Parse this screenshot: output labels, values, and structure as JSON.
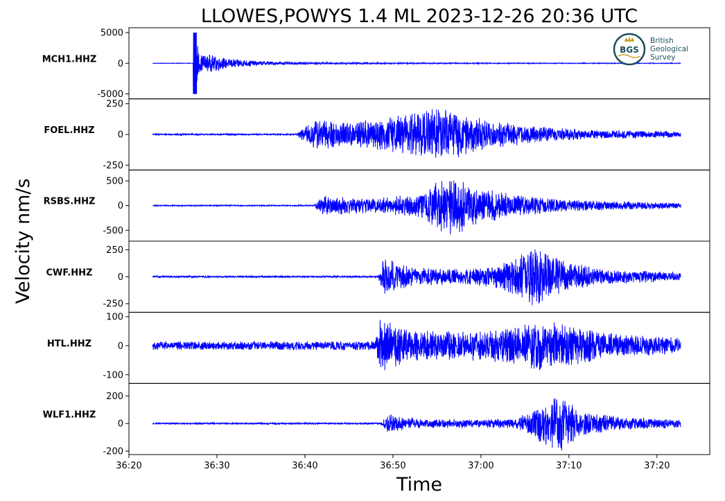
{
  "chart_data": {
    "type": "line",
    "title": "LLOWES,POWYS 1.4 ML   2023-12-26 20:36 UTC",
    "xlabel": "Time",
    "ylabel": "Velocity nm/s",
    "x_range_seconds": [
      0,
      66
    ],
    "x_ticks": [
      {
        "t": 0,
        "label": "36:20"
      },
      {
        "t": 10,
        "label": "36:30"
      },
      {
        "t": 20,
        "label": "36:40"
      },
      {
        "t": 30,
        "label": "36:50"
      },
      {
        "t": 40,
        "label": "37:00"
      },
      {
        "t": 50,
        "label": "37:10"
      },
      {
        "t": 60,
        "label": "37:20"
      }
    ],
    "trace_color": "#0000ff",
    "trace_start_label": "36:22.7",
    "trace_end_label": "37:22.7",
    "panels": [
      {
        "station": "MCH1.HHZ",
        "ylim": [
          -5800,
          5800
        ],
        "yticks": [
          {
            "v": 5000,
            "label": "5000"
          },
          {
            "v": 0,
            "label": "0"
          },
          {
            "v": -5000,
            "label": "-5000"
          }
        ],
        "noise": 40,
        "onset_seconds": 27.5,
        "peak": 5000,
        "envelope": [
          [
            22.7,
            40
          ],
          [
            27.4,
            40
          ],
          [
            27.6,
            5000
          ],
          [
            28.0,
            1500
          ],
          [
            30.0,
            1400
          ],
          [
            31.0,
            900
          ],
          [
            35.0,
            350
          ],
          [
            40.0,
            200
          ],
          [
            50.0,
            120
          ],
          [
            60.0,
            80
          ],
          [
            82.7,
            60
          ]
        ]
      },
      {
        "station": "FOEL.HHZ",
        "ylim": [
          -290,
          290
        ],
        "yticks": [
          {
            "v": 250,
            "label": "250"
          },
          {
            "v": 0,
            "label": "0"
          },
          {
            "v": -250,
            "label": "-250"
          }
        ],
        "noise": 6,
        "onset_seconds": 39.5,
        "peak": 250,
        "envelope": [
          [
            22.7,
            6
          ],
          [
            39.0,
            6
          ],
          [
            41.0,
            130
          ],
          [
            45.0,
            110
          ],
          [
            50.0,
            150
          ],
          [
            54.0,
            230
          ],
          [
            57.0,
            200
          ],
          [
            60.0,
            130
          ],
          [
            66.0,
            70
          ],
          [
            72.0,
            40
          ],
          [
            82.7,
            25
          ]
        ]
      },
      {
        "station": "RSBS.HHZ",
        "ylim": [
          -720,
          720
        ],
        "yticks": [
          {
            "v": 500,
            "label": "500"
          },
          {
            "v": 0,
            "label": "0"
          },
          {
            "v": -500,
            "label": "-500"
          }
        ],
        "noise": 12,
        "onset_seconds": 41.2,
        "peak": 700,
        "envelope": [
          [
            22.7,
            12
          ],
          [
            41.0,
            12
          ],
          [
            42.0,
            200
          ],
          [
            48.0,
            150
          ],
          [
            53.0,
            250
          ],
          [
            55.5,
            550
          ],
          [
            57.0,
            650
          ],
          [
            59.0,
            400
          ],
          [
            64.0,
            220
          ],
          [
            70.0,
            120
          ],
          [
            82.7,
            60
          ]
        ]
      },
      {
        "station": "CWF.HHZ",
        "ylim": [
          -330,
          330
        ],
        "yticks": [
          {
            "v": 250,
            "label": "250"
          },
          {
            "v": 0,
            "label": "0"
          },
          {
            "v": -250,
            "label": "-250"
          }
        ],
        "noise": 8,
        "onset_seconds": 48.5,
        "peak": 300,
        "envelope": [
          [
            22.7,
            8
          ],
          [
            48.3,
            8
          ],
          [
            49.0,
            180
          ],
          [
            52.0,
            90
          ],
          [
            58.0,
            70
          ],
          [
            62.0,
            110
          ],
          [
            66.0,
            280
          ],
          [
            69.0,
            160
          ],
          [
            74.0,
            70
          ],
          [
            82.7,
            40
          ]
        ]
      },
      {
        "station": "HTL.HHZ",
        "ylim": [
          -130,
          115
        ],
        "yticks": [
          {
            "v": 100,
            "label": "100"
          },
          {
            "v": 0,
            "label": "0"
          },
          {
            "v": -100,
            "label": "-100"
          }
        ],
        "noise": 15,
        "onset_seconds": 48.0,
        "peak": 110,
        "envelope": [
          [
            22.7,
            15
          ],
          [
            48.0,
            16
          ],
          [
            48.6,
            100
          ],
          [
            52.0,
            60
          ],
          [
            58.0,
            50
          ],
          [
            64.0,
            70
          ],
          [
            67.0,
            90
          ],
          [
            70.0,
            70
          ],
          [
            76.0,
            40
          ],
          [
            82.7,
            30
          ]
        ]
      },
      {
        "station": "WLF1.HHZ",
        "ylim": [
          -225,
          290
        ],
        "yticks": [
          {
            "v": 200,
            "label": "200"
          },
          {
            "v": 0,
            "label": "0"
          },
          {
            "v": -200,
            "label": "-200"
          }
        ],
        "noise": 5,
        "onset_seconds": 48.8,
        "peak": 250,
        "envelope": [
          [
            22.7,
            5
          ],
          [
            48.6,
            6
          ],
          [
            49.5,
            70
          ],
          [
            53.0,
            35
          ],
          [
            60.0,
            30
          ],
          [
            64.0,
            40
          ],
          [
            68.0,
            180
          ],
          [
            69.0,
            250
          ],
          [
            71.0,
            100
          ],
          [
            76.0,
            50
          ],
          [
            82.7,
            30
          ]
        ]
      }
    ]
  },
  "logo": {
    "monogram": "BGS",
    "line1": "British",
    "line2": "Geological",
    "line3": "Survey",
    "ring_color": "#1d4e5f",
    "accent_color": "#c9a227"
  }
}
